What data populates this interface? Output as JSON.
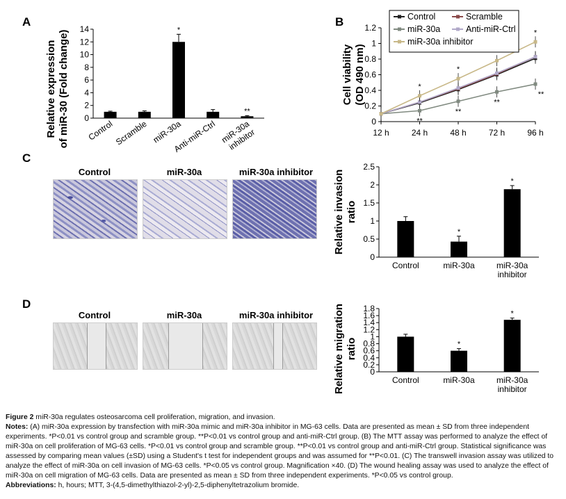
{
  "panels": {
    "a": "A",
    "b": "B",
    "c": "C",
    "d": "D"
  },
  "chart_data": [
    {
      "type": "bar",
      "panel": "A",
      "ylabel": "Relative expression of miR-30 (Fold change)",
      "ylabel_lines": [
        "Relative expression",
        "of miR-30 (Fold change)"
      ],
      "categories": [
        "Control",
        "Scramble",
        "miR-30a",
        "Anti-miR-Ctrl",
        "miR-30a inhibitor"
      ],
      "values": [
        1,
        1,
        12,
        1,
        0.3
      ],
      "errors": [
        0.1,
        0.15,
        1.2,
        0.35,
        0.1
      ],
      "annotations": [
        "",
        "",
        "*",
        "",
        "**"
      ],
      "ylim": [
        0,
        14
      ],
      "yticks": [
        "0",
        "2",
        "4",
        "6",
        "8",
        "10",
        "12",
        "14"
      ],
      "color": "#000000"
    },
    {
      "type": "line",
      "panel": "B",
      "ylabel": "Cell viability (OD 490 nm)",
      "ylabel_lines": [
        "Cell viability",
        "(OD 490 nm)"
      ],
      "x": [
        "12 h",
        "24 h",
        "48 h",
        "72 h",
        "96 h"
      ],
      "ylim": [
        0,
        1.2
      ],
      "yticks": [
        "0",
        "0.2",
        "0.4",
        "0.6",
        "0.8",
        "1",
        "1.2"
      ],
      "legend": "top-left",
      "series": [
        {
          "name": "Control",
          "values": [
            0.1,
            0.24,
            0.41,
            0.6,
            0.81
          ],
          "color": "#222222",
          "marker": "diamond"
        },
        {
          "name": "Scramble",
          "values": [
            0.1,
            0.25,
            0.42,
            0.61,
            0.83
          ],
          "color": "#8a4a4a",
          "marker": "square"
        },
        {
          "name": "miR-30a",
          "values": [
            0.1,
            0.14,
            0.26,
            0.38,
            0.48
          ],
          "color": "#808a80",
          "marker": "triangle",
          "annotations": [
            "",
            "**",
            "**",
            "**",
            "**"
          ]
        },
        {
          "name": "Anti-miR-Ctrl",
          "values": [
            0.1,
            0.25,
            0.43,
            0.62,
            0.83
          ],
          "color": "#b0a8c8",
          "marker": "x"
        },
        {
          "name": "miR-30a inhibitor",
          "values": [
            0.1,
            0.33,
            0.55,
            0.78,
            1.02
          ],
          "color": "#c8b888",
          "marker": "star",
          "annotations": [
            "",
            "*",
            "*",
            "*",
            "*"
          ]
        }
      ]
    },
    {
      "type": "bar",
      "panel": "C",
      "ylabel": "Relative invasion ratio",
      "ylabel_lines": [
        "Relative invasion",
        "ratio"
      ],
      "categories": [
        "Control",
        "miR-30a",
        "miR-30a inhibitor"
      ],
      "values": [
        1,
        0.43,
        1.88
      ],
      "errors": [
        0.12,
        0.15,
        0.1
      ],
      "annotations": [
        "",
        "*",
        "*"
      ],
      "ylim": [
        0,
        2.5
      ],
      "yticks": [
        "0",
        "0.5",
        "1",
        "1.5",
        "2",
        "2.5"
      ]
    },
    {
      "type": "bar",
      "panel": "D",
      "ylabel": "Relative migration ratio",
      "ylabel_lines": [
        "Relative migration",
        "ratio"
      ],
      "categories": [
        "Control",
        "miR-30a",
        "miR-30a inhibitor"
      ],
      "values": [
        1,
        0.6,
        1.48
      ],
      "errors": [
        0.07,
        0.06,
        0.05
      ],
      "annotations": [
        "",
        "*",
        "*"
      ],
      "ylim": [
        0,
        1.8
      ],
      "yticks": [
        "0",
        "0.2",
        "0.4",
        "0.6",
        "0.8",
        "1",
        "1.2",
        "1.4",
        "1.6",
        "1.8"
      ]
    }
  ],
  "photo_titles": {
    "c": [
      "Control",
      "miR-30a",
      "miR-30a inhibitor"
    ],
    "d": [
      "Control",
      "miR-30a",
      "miR-30a inhibitor"
    ]
  },
  "caption": {
    "fig": "Figure 2",
    "title": " miR-30a regulates osteosarcoma cell proliferation, migration, and invasion.",
    "notes_label": "Notes:",
    "notes": " (A) miR-30a expression by transfection with miR-30a mimic and miR-30a inhibitor in MG-63 cells. Data are presented as mean ± SD from three independent experiments. *P<0.01 vs control group and scramble group. **P<0.01 vs control group and anti-miR-Ctrl group. (B) The MTT assay was performed to analyze the effect of miR-30a on cell proliferation of MG-63 cells. *P<0.01 vs control group and scramble group. **P<0.01 vs control group and anti-miR-Ctrl group. Statistical significance was assessed by comparing mean values (±SD) using a Student's t test for independent groups and was assumed for **P<0.01. (C) The transwell invasion assay was utilized to analyze the effect of miR-30a on cell invasion of MG-63 cells. *P<0.05 vs control group. Magnification ×40. (D) The wound healing assay was used to analyze the effect of miR-30a on cell migration of MG-63 cells. Data are presented as mean ± SD from three independent experiments. *P<0.05 vs control group.",
    "abbr_label": "Abbreviations:",
    "abbr": " h, hours; MTT, 3-(4,5-dimethylthiazol-2-yl)-2,5-diphenyltetrazolium bromide."
  }
}
